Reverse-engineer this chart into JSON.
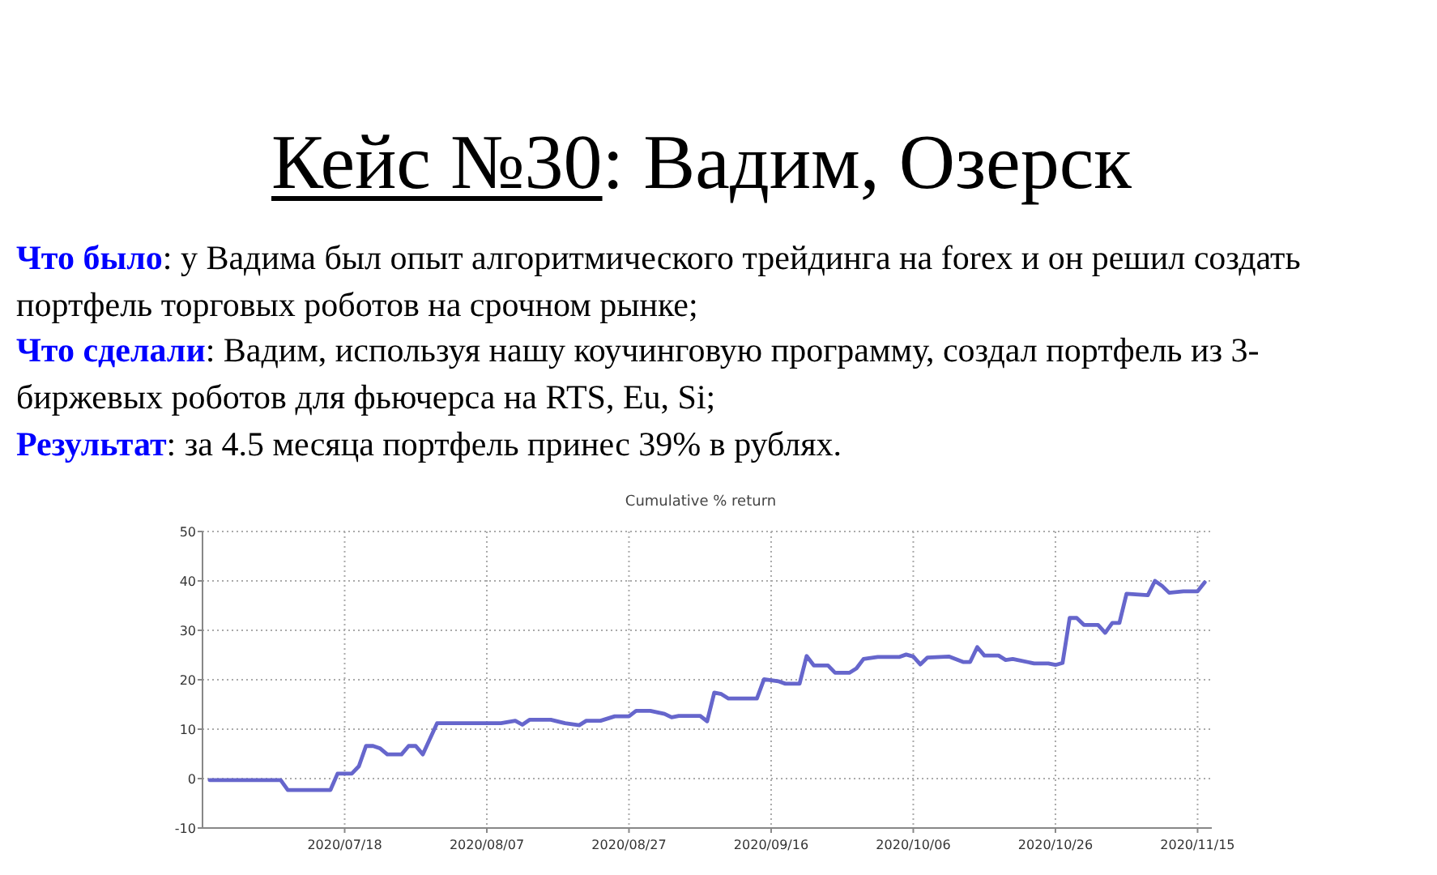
{
  "chart_data": {
    "type": "line",
    "title": "Кейс №30: Вадим, Озерск",
    "subtitle": "Cumulative % return",
    "annotations": [
      "Что было: у Вадима был опыт алгоритмического трейдинга на forex и он решил создать портфель торговых роботов на срочном рынке;",
      "Что сделали: Вадим, используя нашу коучинговую программу, создал портфель из 3- биржевых роботов для фьючерса на RTS, Eu, Si;",
      "Результат: за 4.5 месяца портфель принес 39% в рублях."
    ],
    "x": [
      "2020-06-29",
      "2020-07-09",
      "2020-07-10",
      "2020-07-16",
      "2020-07-17",
      "2020-07-19",
      "2020-07-20",
      "2020-07-21",
      "2020-07-22",
      "2020-07-23",
      "2020-07-24",
      "2020-07-26",
      "2020-07-27",
      "2020-07-28",
      "2020-07-29",
      "2020-07-31",
      "2020-08-09",
      "2020-08-11",
      "2020-08-12",
      "2020-08-13",
      "2020-08-16",
      "2020-08-18",
      "2020-08-20",
      "2020-08-21",
      "2020-08-23",
      "2020-08-25",
      "2020-08-27",
      "2020-08-28",
      "2020-08-30",
      "2020-09-01",
      "2020-09-02",
      "2020-09-03",
      "2020-09-06",
      "2020-09-07",
      "2020-09-08",
      "2020-09-09",
      "2020-09-10",
      "2020-09-14",
      "2020-09-15",
      "2020-09-17",
      "2020-09-18",
      "2020-09-20",
      "2020-09-21",
      "2020-09-22",
      "2020-09-24",
      "2020-09-25",
      "2020-09-27",
      "2020-09-28",
      "2020-09-29",
      "2020-10-01",
      "2020-10-04",
      "2020-10-05",
      "2020-10-06",
      "2020-10-07",
      "2020-10-08",
      "2020-10-11",
      "2020-10-13",
      "2020-10-14",
      "2020-10-15",
      "2020-10-16",
      "2020-10-18",
      "2020-10-19",
      "2020-10-20",
      "2020-10-23",
      "2020-10-25",
      "2020-10-26",
      "2020-10-27",
      "2020-10-28",
      "2020-10-29",
      "2020-10-30",
      "2020-11-01",
      "2020-11-02",
      "2020-11-03",
      "2020-11-04",
      "2020-11-05",
      "2020-11-08",
      "2020-11-09",
      "2020-11-10",
      "2020-11-11",
      "2020-11-13",
      "2020-11-15",
      "2020-11-16"
    ],
    "series": [
      {
        "color": "#6666cc",
        "values": [
          -0.3,
          -0.3,
          -2.3,
          -2.3,
          1.0,
          1.0,
          2.5,
          6.6,
          6.6,
          6.1,
          4.9,
          4.9,
          6.6,
          6.6,
          4.9,
          11.2,
          11.2,
          11.7,
          10.9,
          11.9,
          11.9,
          11.2,
          10.8,
          11.7,
          11.7,
          12.6,
          12.6,
          13.7,
          13.7,
          13.1,
          12.4,
          12.7,
          12.7,
          11.6,
          17.4,
          17.1,
          16.2,
          16.2,
          20.1,
          19.7,
          19.2,
          19.2,
          24.8,
          22.9,
          22.9,
          21.4,
          21.4,
          22.3,
          24.2,
          24.6,
          24.6,
          25.1,
          24.7,
          23.1,
          24.5,
          24.7,
          23.6,
          23.6,
          26.6,
          24.9,
          24.9,
          24.0,
          24.2,
          23.3,
          23.3,
          23.0,
          23.4,
          32.5,
          32.5,
          31.1,
          31.1,
          29.5,
          31.5,
          31.5,
          37.4,
          37.1,
          40.0,
          39.0,
          37.6,
          37.9,
          37.9,
          39.7
        ]
      }
    ],
    "xlim": [
      "2020-06-28",
      "2020-11-17"
    ],
    "xticks": [
      {
        "value": "2020-07-18",
        "label": "2020/07/18"
      },
      {
        "value": "2020-08-07",
        "label": "2020/08/07"
      },
      {
        "value": "2020-08-27",
        "label": "2020/08/27"
      },
      {
        "value": "2020-09-16",
        "label": "2020/09/16"
      },
      {
        "value": "2020-10-06",
        "label": "2020/10/06"
      },
      {
        "value": "2020-10-26",
        "label": "2020/10/26"
      },
      {
        "value": "2020-11-15",
        "label": "2020/11/15"
      }
    ],
    "ylim": [
      -10,
      50
    ],
    "yticks": [
      -10,
      0,
      10,
      20,
      30,
      40,
      50
    ],
    "grid": true
  }
}
